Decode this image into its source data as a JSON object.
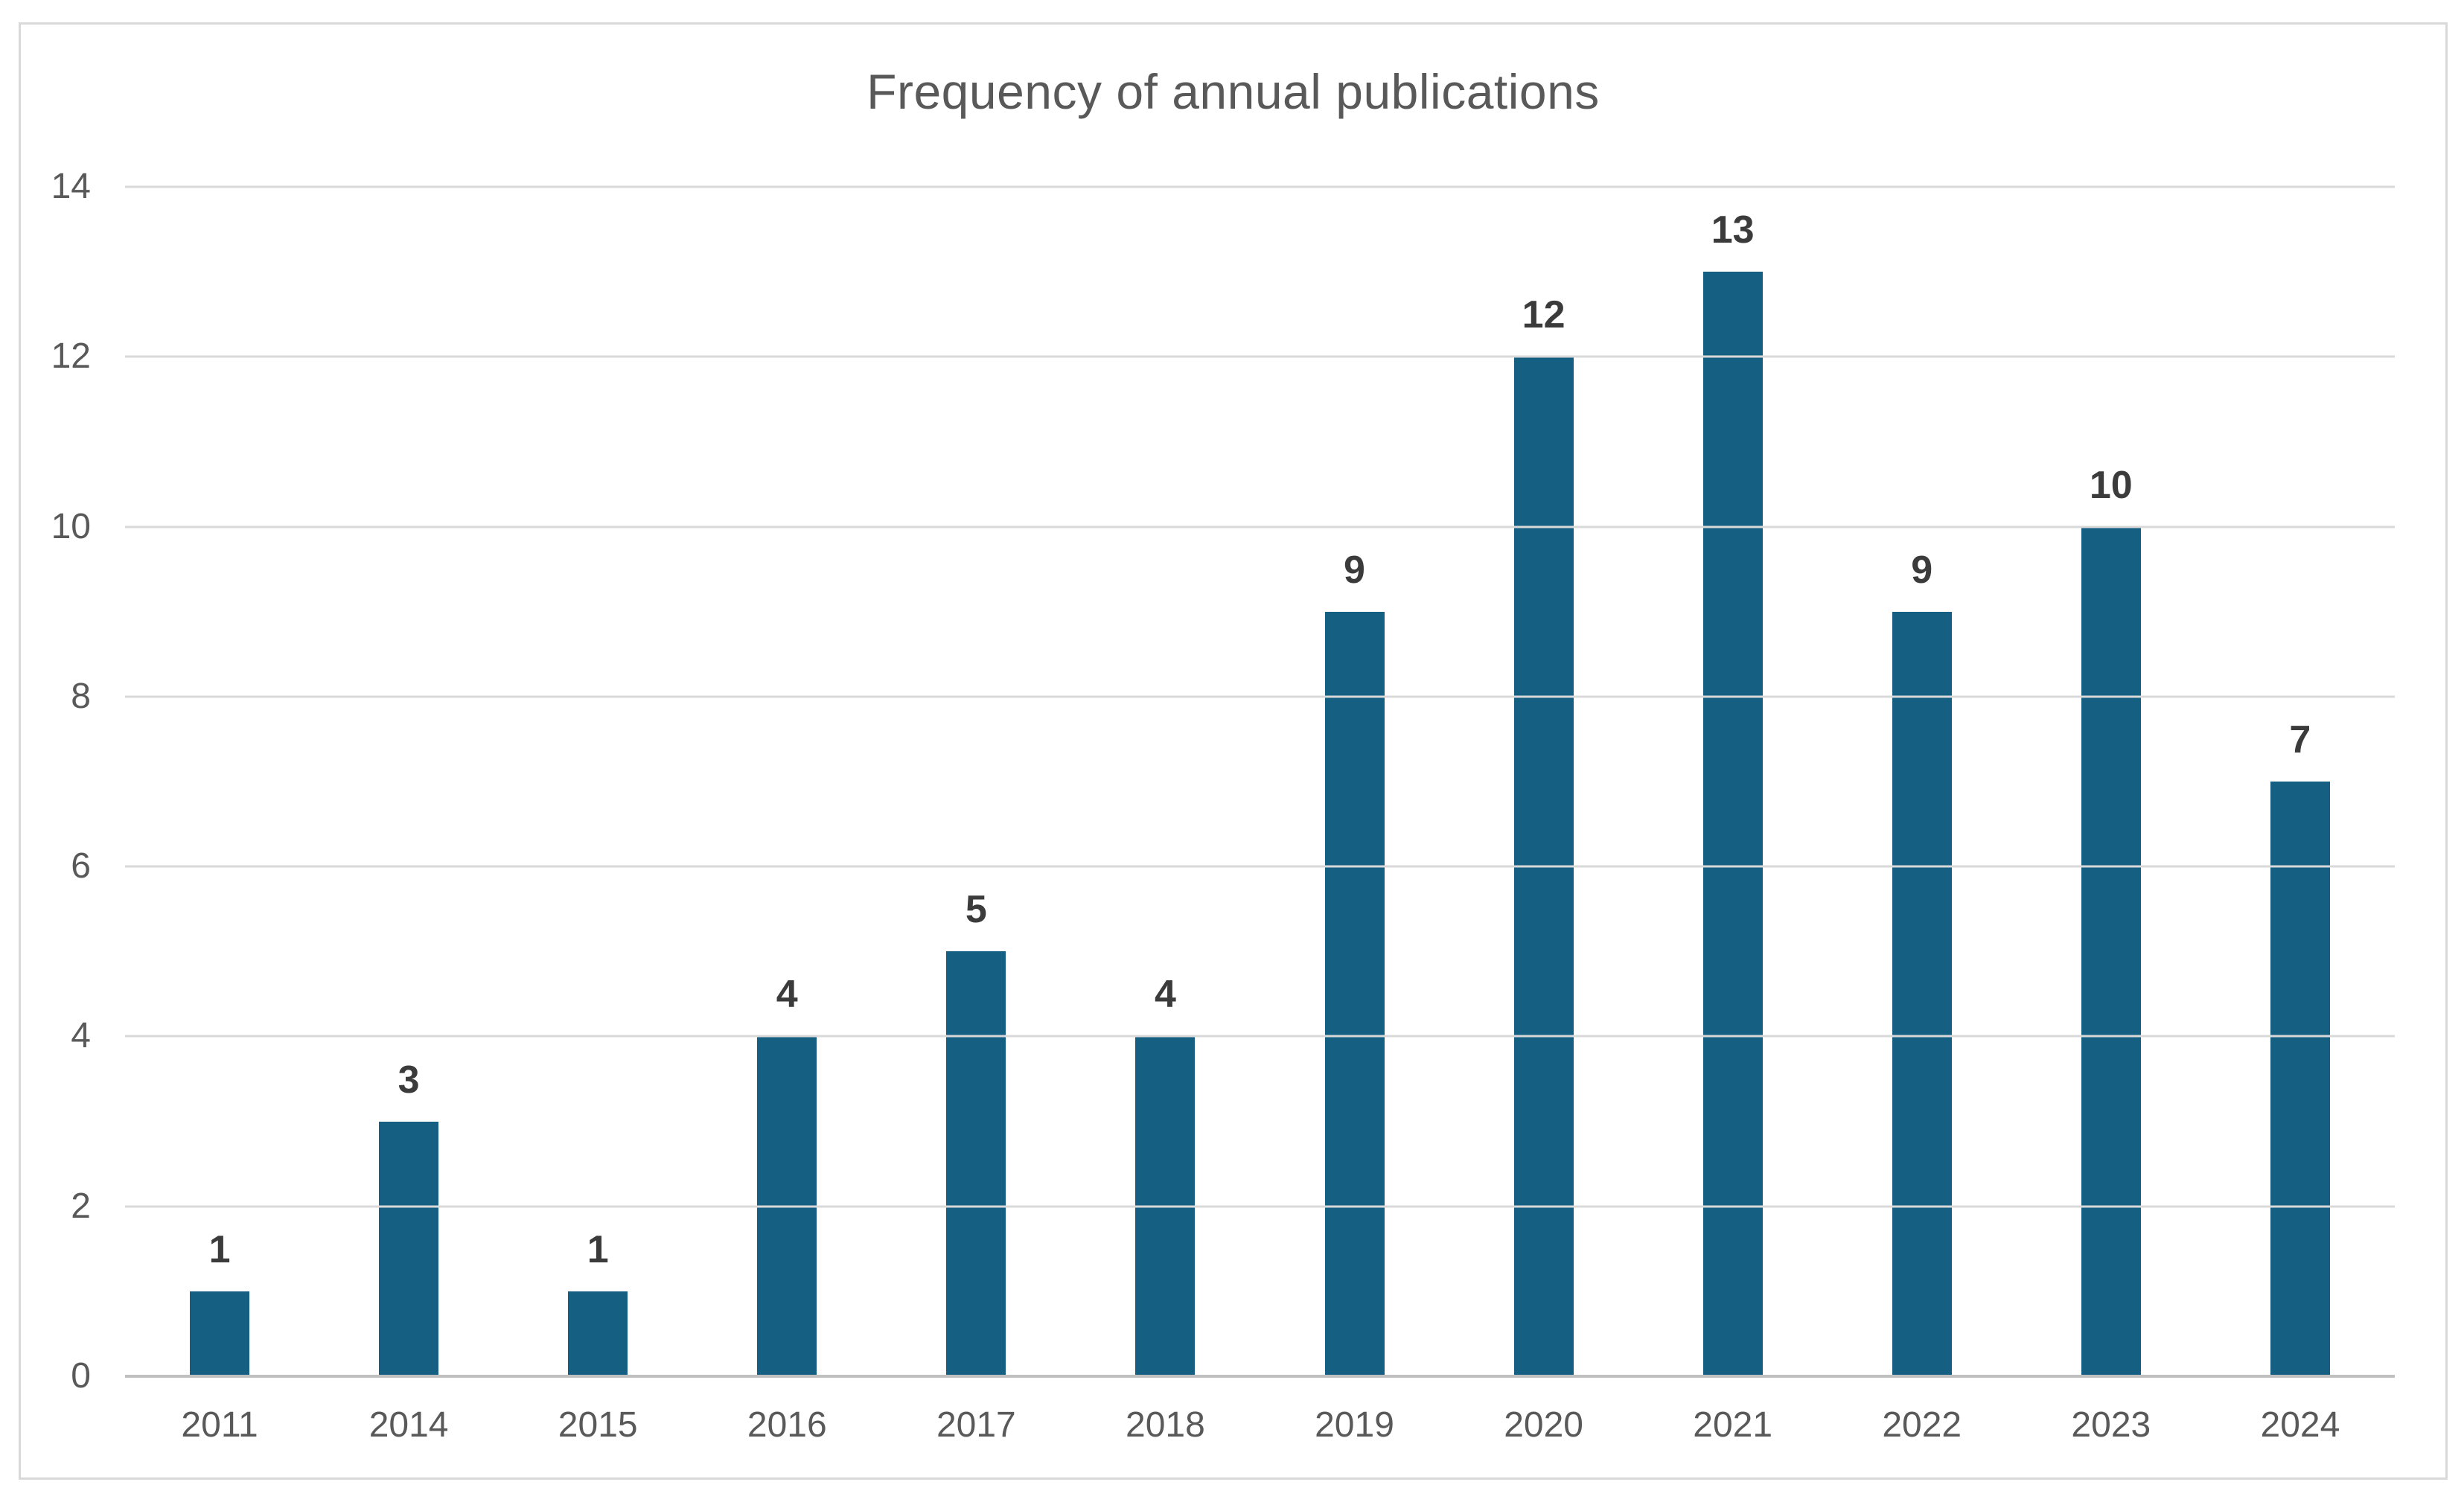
{
  "chart_data": {
    "type": "bar",
    "title": "Frequency of annual publications",
    "categories": [
      "2011",
      "2014",
      "2015",
      "2016",
      "2017",
      "2018",
      "2019",
      "2020",
      "2021",
      "2022",
      "2023",
      "2024"
    ],
    "values": [
      1,
      3,
      1,
      4,
      5,
      4,
      9,
      12,
      13,
      9,
      10,
      7
    ],
    "xlabel": "",
    "ylabel": "",
    "ylim": [
      0,
      14
    ],
    "yticks": [
      0,
      2,
      4,
      6,
      8,
      10,
      12,
      14
    ],
    "grid": true,
    "legend": "none",
    "data_labels_shown": true,
    "colors": {
      "bar": "#156082",
      "gridline": "#D9D9D9",
      "axis_line": "#C0C0C0",
      "title": "#595959",
      "tick_label": "#595959",
      "value_label": "#3B3B3B",
      "frame_border": "#D9D9D9",
      "background": "#FFFFFF"
    }
  }
}
